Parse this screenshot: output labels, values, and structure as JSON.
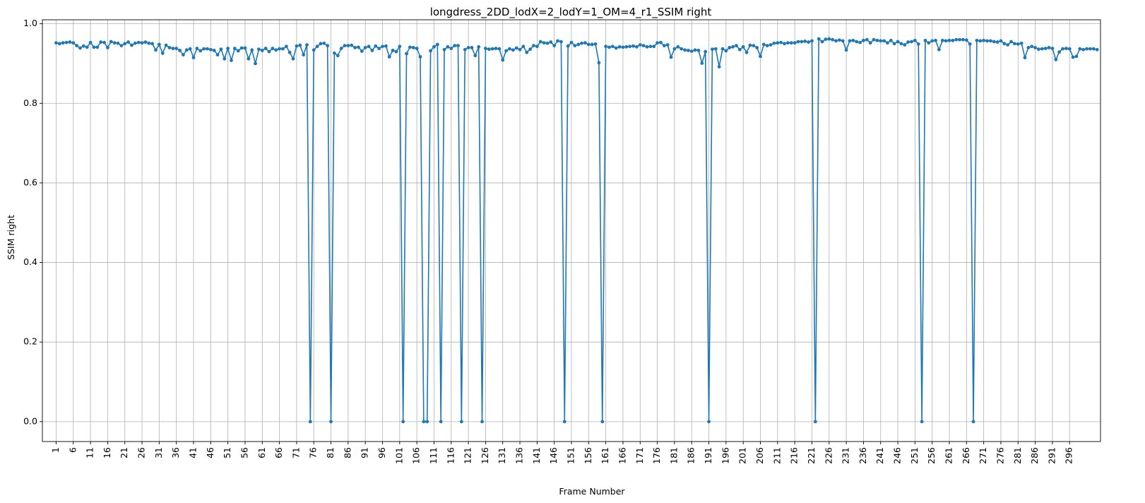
{
  "chart_data": {
    "type": "line",
    "title": "longdress_2DD_lodX=2_lodY=1_OM=4_r1_SSIM right",
    "xlabel": "Frame Number",
    "ylabel": "SSIM right",
    "xlim": [
      -3,
      305
    ],
    "ylim": [
      -0.05,
      1.01
    ],
    "xticks": [
      1,
      6,
      11,
      16,
      21,
      26,
      31,
      36,
      41,
      46,
      51,
      56,
      61,
      66,
      71,
      76,
      81,
      86,
      91,
      96,
      101,
      106,
      111,
      116,
      121,
      126,
      131,
      136,
      141,
      146,
      151,
      156,
      161,
      166,
      171,
      176,
      181,
      186,
      191,
      196,
      201,
      206,
      211,
      216,
      221,
      226,
      231,
      236,
      241,
      246,
      251,
      256,
      261,
      266,
      271,
      276,
      281,
      286,
      291,
      296
    ],
    "yticks": [
      0.0,
      0.2,
      0.4,
      0.6,
      0.8,
      1.0
    ],
    "ytick_labels": [
      "0.0",
      "0.2",
      "0.4",
      "0.6",
      "0.8",
      "1.0"
    ],
    "grid": true,
    "line_color": "#1f77b4",
    "series": [
      {
        "x_start": 1,
        "values": [
          0.952,
          0.95,
          0.952,
          0.953,
          0.954,
          0.952,
          0.945,
          0.939,
          0.944,
          0.941,
          0.953,
          0.941,
          0.941,
          0.954,
          0.953,
          0.94,
          0.955,
          0.952,
          0.951,
          0.945,
          0.95,
          0.954,
          0.946,
          0.951,
          0.953,
          0.952,
          0.954,
          0.951,
          0.95,
          0.934,
          0.948,
          0.926,
          0.946,
          0.94,
          0.938,
          0.938,
          0.933,
          0.922,
          0.934,
          0.937,
          0.915,
          0.938,
          0.932,
          0.937,
          0.937,
          0.935,
          0.933,
          0.922,
          0.936,
          0.912,
          0.938,
          0.908,
          0.938,
          0.932,
          0.939,
          0.939,
          0.912,
          0.934,
          0.9,
          0.936,
          0.933,
          0.938,
          0.93,
          0.938,
          0.934,
          0.937,
          0.937,
          0.943,
          0.928,
          0.912,
          0.944,
          0.946,
          0.922,
          0.947,
          0.0,
          0.934,
          0.943,
          0.95,
          0.951,
          0.945,
          0.0,
          0.926,
          0.92,
          0.938,
          0.945,
          0.945,
          0.946,
          0.94,
          0.941,
          0.931,
          0.94,
          0.943,
          0.933,
          0.944,
          0.938,
          0.943,
          0.944,
          0.917,
          0.933,
          0.93,
          0.943,
          0.0,
          0.925,
          0.941,
          0.94,
          0.938,
          0.917,
          0.0,
          0.0,
          0.932,
          0.942,
          0.948,
          0.0,
          0.935,
          0.942,
          0.938,
          0.945,
          0.945,
          0.0,
          0.935,
          0.94,
          0.94,
          0.92,
          0.942,
          0.0,
          0.938,
          0.936,
          0.937,
          0.938,
          0.937,
          0.909,
          0.932,
          0.937,
          0.934,
          0.939,
          0.935,
          0.943,
          0.928,
          0.936,
          0.945,
          0.943,
          0.955,
          0.952,
          0.951,
          0.954,
          0.945,
          0.957,
          0.955,
          0.0,
          0.944,
          0.953,
          0.945,
          0.948,
          0.951,
          0.952,
          0.948,
          0.948,
          0.949,
          0.902,
          0.0,
          0.943,
          0.941,
          0.943,
          0.939,
          0.942,
          0.941,
          0.942,
          0.943,
          0.944,
          0.942,
          0.947,
          0.945,
          0.942,
          0.943,
          0.943,
          0.952,
          0.953,
          0.945,
          0.947,
          0.916,
          0.937,
          0.942,
          0.937,
          0.934,
          0.933,
          0.931,
          0.934,
          0.933,
          0.901,
          0.93,
          0.0,
          0.936,
          0.937,
          0.892,
          0.937,
          0.932,
          0.94,
          0.942,
          0.945,
          0.935,
          0.942,
          0.928,
          0.946,
          0.945,
          0.94,
          0.918,
          0.948,
          0.945,
          0.947,
          0.951,
          0.952,
          0.953,
          0.95,
          0.952,
          0.952,
          0.952,
          0.955,
          0.955,
          0.956,
          0.954,
          0.957,
          0.0,
          0.962,
          0.955,
          0.961,
          0.962,
          0.96,
          0.957,
          0.959,
          0.957,
          0.934,
          0.957,
          0.958,
          0.955,
          0.953,
          0.958,
          0.96,
          0.952,
          0.96,
          0.958,
          0.957,
          0.957,
          0.952,
          0.958,
          0.95,
          0.955,
          0.95,
          0.947,
          0.954,
          0.955,
          0.958,
          0.949,
          0.0,
          0.958,
          0.952,
          0.957,
          0.958,
          0.935,
          0.958,
          0.957,
          0.958,
          0.958,
          0.96,
          0.96,
          0.96,
          0.959,
          0.949,
          0.0,
          0.958,
          0.957,
          0.958,
          0.957,
          0.957,
          0.955,
          0.954,
          0.957,
          0.95,
          0.947,
          0.955,
          0.95,
          0.949,
          0.951,
          0.915,
          0.94,
          0.943,
          0.94,
          0.936,
          0.937,
          0.938,
          0.94,
          0.938,
          0.91,
          0.929,
          0.937,
          0.938,
          0.937,
          0.916,
          0.918,
          0.937,
          0.935,
          0.937,
          0.937,
          0.937,
          0.935
        ]
      }
    ]
  }
}
